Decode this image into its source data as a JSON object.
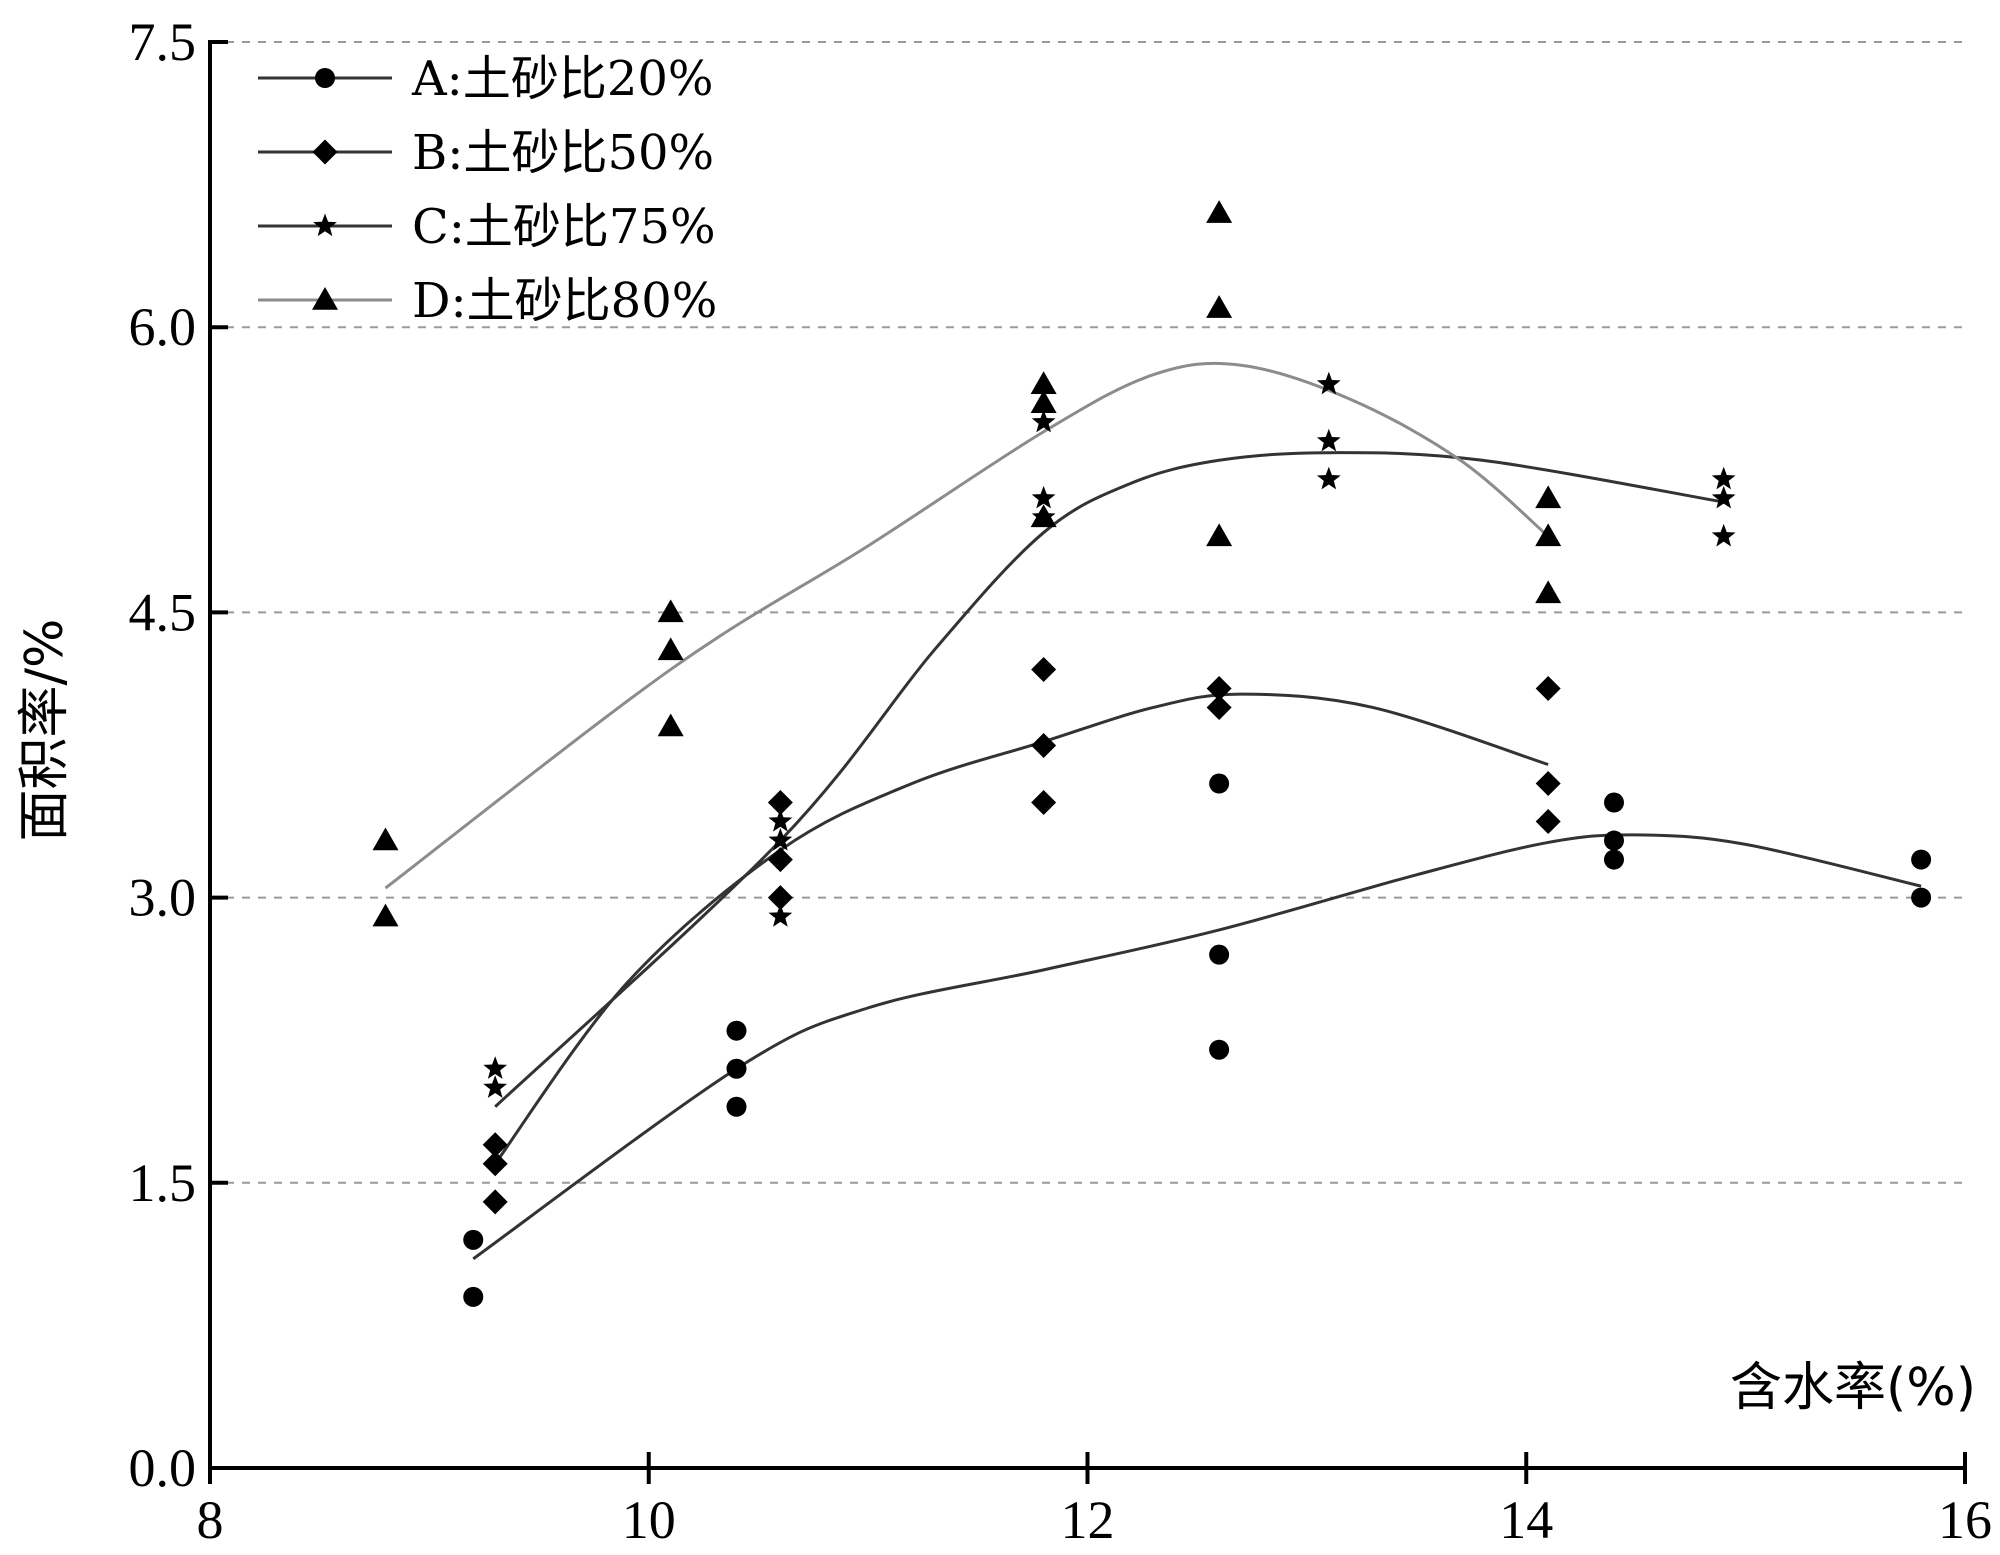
{
  "chart_data": {
    "type": "scatter",
    "title": "",
    "xlabel": "含水率(%)",
    "ylabel": "面积率/%",
    "xlim": [
      8,
      16
    ],
    "ylim": [
      0,
      7.5
    ],
    "x_ticks": [
      "8",
      "10",
      "12",
      "14",
      "16"
    ],
    "y_ticks": [
      "0.0",
      "1.5",
      "3.0",
      "4.5",
      "6.0",
      "7.5"
    ],
    "grid": "horizontal dashed",
    "legend_position": "top-left",
    "series": [
      {
        "name": "A:土砂比20%",
        "marker": "circle",
        "line_color": "#333333",
        "points": [
          [
            9.2,
            1.2
          ],
          [
            9.2,
            0.9
          ],
          [
            10.4,
            2.3
          ],
          [
            10.4,
            2.1
          ],
          [
            10.4,
            1.9
          ],
          [
            12.6,
            3.6
          ],
          [
            12.6,
            2.7
          ],
          [
            12.6,
            2.2
          ],
          [
            14.4,
            3.5
          ],
          [
            14.4,
            3.3
          ],
          [
            14.4,
            3.2
          ],
          [
            15.8,
            3.2
          ],
          [
            15.8,
            3.0
          ]
        ],
        "fit": [
          [
            9.2,
            1.1
          ],
          [
            10.4,
            2.1
          ],
          [
            11.0,
            2.42
          ],
          [
            11.8,
            2.62
          ],
          [
            12.6,
            2.83
          ],
          [
            13.5,
            3.12
          ],
          [
            14.1,
            3.29
          ],
          [
            14.5,
            3.33
          ],
          [
            15.0,
            3.28
          ],
          [
            15.8,
            3.06
          ]
        ]
      },
      {
        "name": "B:土砂比50%",
        "marker": "diamond",
        "line_color": "#333333",
        "points": [
          [
            9.3,
            1.7
          ],
          [
            9.3,
            1.6
          ],
          [
            9.3,
            1.4
          ],
          [
            10.6,
            3.5
          ],
          [
            10.6,
            3.2
          ],
          [
            10.6,
            3.0
          ],
          [
            11.8,
            4.2
          ],
          [
            11.8,
            3.8
          ],
          [
            11.8,
            3.5
          ],
          [
            12.6,
            4.1
          ],
          [
            12.6,
            4.0
          ],
          [
            14.1,
            4.1
          ],
          [
            14.1,
            3.6
          ],
          [
            14.1,
            3.4
          ]
        ],
        "fit": [
          [
            9.3,
            1.6
          ],
          [
            9.9,
            2.55
          ],
          [
            10.6,
            3.25
          ],
          [
            11.2,
            3.6
          ],
          [
            11.8,
            3.82
          ],
          [
            12.3,
            4.0
          ],
          [
            12.7,
            4.07
          ],
          [
            13.3,
            4.0
          ],
          [
            14.1,
            3.7
          ]
        ]
      },
      {
        "name": "C:土砂比75%",
        "marker": "star",
        "line_color": "#333333",
        "points": [
          [
            9.3,
            2.1
          ],
          [
            9.3,
            2.0
          ],
          [
            10.6,
            3.4
          ],
          [
            10.6,
            3.3
          ],
          [
            10.6,
            2.9
          ],
          [
            11.8,
            5.5
          ],
          [
            11.8,
            5.1
          ],
          [
            11.8,
            5.0
          ],
          [
            13.1,
            5.7
          ],
          [
            13.1,
            5.4
          ],
          [
            13.1,
            5.2
          ],
          [
            14.9,
            5.2
          ],
          [
            14.9,
            5.1
          ],
          [
            14.9,
            4.9
          ]
        ],
        "fit": [
          [
            9.3,
            1.9
          ],
          [
            10.6,
            3.3
          ],
          [
            11.3,
            4.3
          ],
          [
            11.8,
            4.92
          ],
          [
            12.2,
            5.18
          ],
          [
            12.6,
            5.3
          ],
          [
            13.1,
            5.34
          ],
          [
            13.8,
            5.3
          ],
          [
            14.9,
            5.08
          ]
        ]
      },
      {
        "name": "D:土砂比80%",
        "marker": "triangle",
        "line_color": "#8c8c8c",
        "points": [
          [
            8.8,
            3.3
          ],
          [
            8.8,
            2.9
          ],
          [
            10.1,
            4.5
          ],
          [
            10.1,
            4.3
          ],
          [
            10.1,
            3.9
          ],
          [
            11.8,
            5.7
          ],
          [
            11.8,
            5.6
          ],
          [
            11.8,
            5.0
          ],
          [
            12.6,
            6.6
          ],
          [
            12.6,
            6.1
          ],
          [
            12.6,
            4.9
          ],
          [
            14.1,
            5.1
          ],
          [
            14.1,
            4.9
          ],
          [
            14.1,
            4.6
          ]
        ],
        "fit": [
          [
            8.8,
            3.05
          ],
          [
            10.1,
            4.2
          ],
          [
            11.0,
            4.85
          ],
          [
            11.8,
            5.45
          ],
          [
            12.3,
            5.75
          ],
          [
            12.7,
            5.8
          ],
          [
            13.2,
            5.62
          ],
          [
            13.7,
            5.3
          ],
          [
            14.1,
            4.9
          ]
        ]
      }
    ]
  }
}
